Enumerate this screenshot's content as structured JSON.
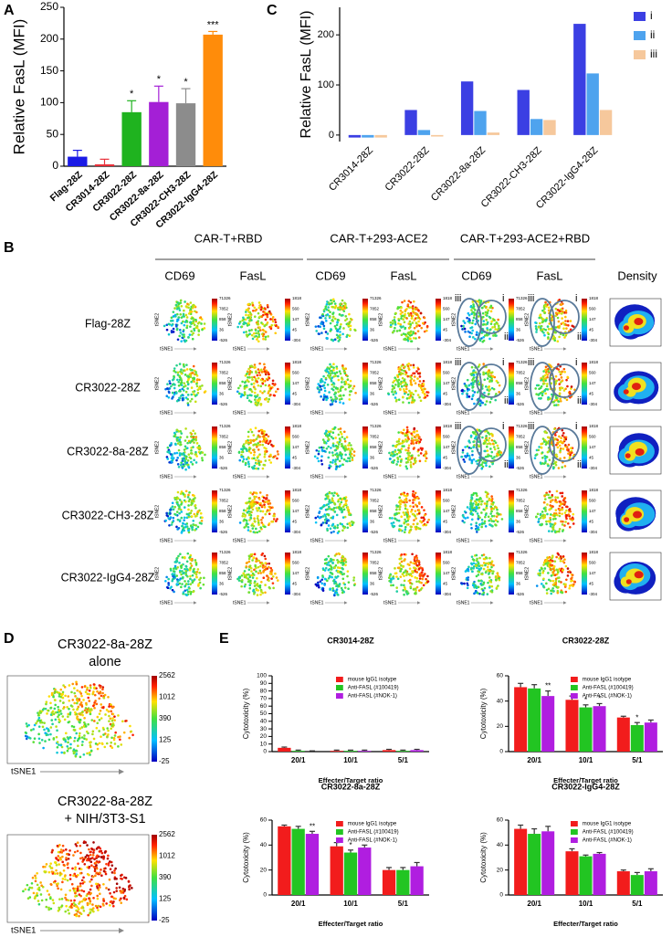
{
  "panel_labels": [
    "A",
    "B",
    "C",
    "D",
    "E"
  ],
  "chart_data": [
    {
      "type": "bar",
      "ylabel": "Relative FasL (MFI)",
      "categories": [
        "Flag-28Z",
        "CR3014-28Z",
        "CR3022-28Z",
        "CR3022-8a-28Z",
        "CR3022-CH3-28Z",
        "CR3022-IgG4-28Z"
      ],
      "values": [
        15,
        3,
        85,
        101,
        99,
        207
      ],
      "errors": [
        10,
        8,
        18,
        25,
        23,
        5
      ],
      "colors": [
        "#1a1ae6",
        "#e8303a",
        "#1fb31f",
        "#a41fd6",
        "#8c8c8c",
        "#ff8c0a"
      ],
      "significance": [
        null,
        null,
        "*",
        "*",
        "*",
        "***"
      ],
      "ylim": [
        0,
        250
      ],
      "yticks": [
        0,
        50,
        100,
        150,
        200,
        250
      ]
    },
    {
      "type": "grouped_bar",
      "ylabel": "Relative FasL (MFI)",
      "categories": [
        "CR3014-28Z",
        "CR3022-28Z",
        "CR3022-8a-28Z",
        "CR3022-CH3-28Z",
        "CR3022-IgG4-28Z"
      ],
      "series": [
        {
          "name": "i",
          "color": "#3b3fe3",
          "values": [
            -5,
            50,
            107,
            90,
            222
          ]
        },
        {
          "name": "ii",
          "color": "#4ea3ee",
          "values": [
            -5,
            10,
            48,
            32,
            123
          ]
        },
        {
          "name": "iii",
          "color": "#f6c89c",
          "values": [
            -5,
            -3,
            5,
            30,
            50
          ]
        }
      ],
      "ylim": [
        -13,
        255
      ],
      "yticks": [
        0,
        100,
        200
      ],
      "legend": "upper right"
    },
    {
      "type": "grouped_bar",
      "title": "CR3014-28Z",
      "ylabel": "Cytotoxicity (%)",
      "xlabel": "Effecter/Target ratio",
      "categories": [
        "20/1",
        "10/1",
        "5/1"
      ],
      "series": [
        {
          "name": "mouse IgG1 isotype",
          "color": "#f21c1c",
          "values": [
            5,
            1,
            2
          ],
          "errors": [
            1,
            1,
            1
          ],
          "significance": [
            null,
            null,
            null
          ]
        },
        {
          "name": "Anti-FASL (#100419)",
          "color": "#22c522",
          "values": [
            1,
            1,
            1
          ],
          "errors": [
            1,
            1,
            1
          ],
          "significance": [
            null,
            null,
            null
          ]
        },
        {
          "name": "Anti-FASL (#NOK-1)",
          "color": "#b01ee0",
          "values": [
            0,
            1,
            2
          ],
          "errors": [
            1,
            1,
            1
          ],
          "significance": [
            null,
            null,
            null
          ]
        }
      ],
      "ylim": [
        0,
        100
      ],
      "yticks": [
        0,
        10,
        20,
        30,
        40,
        50,
        60,
        70,
        80,
        90,
        100
      ],
      "legend": "upper right"
    },
    {
      "type": "grouped_bar",
      "title": "CR3022-28Z",
      "ylabel": "Cytotoxicity (%)",
      "xlabel": "Effecter/Target ratio",
      "categories": [
        "20/1",
        "10/1",
        "5/1"
      ],
      "series": [
        {
          "name": "mouse IgG1 isotype",
          "color": "#f21c1c",
          "values": [
            51,
            41,
            27
          ],
          "errors": [
            3,
            3,
            1
          ],
          "significance": [
            null,
            null,
            null
          ]
        },
        {
          "name": "Anti-FASL (#100419)",
          "color": "#22c522",
          "values": [
            50,
            35,
            21
          ],
          "errors": [
            3,
            2,
            2
          ],
          "significance": [
            null,
            "*",
            "*"
          ]
        },
        {
          "name": "Anti-FASL (#NOK-1)",
          "color": "#b01ee0",
          "values": [
            44,
            36,
            23
          ],
          "errors": [
            4,
            2,
            2
          ],
          "significance": [
            "**",
            "*",
            null
          ]
        }
      ],
      "ylim": [
        0,
        60
      ],
      "yticks": [
        0,
        20,
        40,
        60
      ],
      "legend": "upper right"
    },
    {
      "type": "grouped_bar",
      "title": "CR3022-8a-28Z",
      "ylabel": "Cytotoxicity (%)",
      "xlabel": "Effecter/Target ratio",
      "categories": [
        "20/1",
        "10/1",
        "5/1"
      ],
      "series": [
        {
          "name": "mouse IgG1 isotype",
          "color": "#f21c1c",
          "values": [
            55,
            39,
            20
          ],
          "errors": [
            1,
            3,
            2
          ],
          "significance": [
            null,
            null,
            null
          ]
        },
        {
          "name": "Anti-FASL (#100419)",
          "color": "#22c522",
          "values": [
            53,
            34,
            20
          ],
          "errors": [
            2,
            2,
            2
          ],
          "significance": [
            null,
            "*",
            null
          ]
        },
        {
          "name": "Anti-FASL (#NOK-1)",
          "color": "#b01ee0",
          "values": [
            49,
            38,
            23
          ],
          "errors": [
            2,
            2,
            3
          ],
          "significance": [
            "**",
            null,
            null
          ]
        }
      ],
      "ylim": [
        0,
        60
      ],
      "yticks": [
        0,
        20,
        40,
        60
      ],
      "legend": "upper right"
    },
    {
      "type": "grouped_bar",
      "title": "CR3022-IgG4-28Z",
      "ylabel": "Cytotoxicity (%)",
      "xlabel": "Effecter/Target ratio",
      "categories": [
        "20/1",
        "10/1",
        "5/1"
      ],
      "series": [
        {
          "name": "mouse IgG1 isotype",
          "color": "#f21c1c",
          "values": [
            53,
            35,
            19
          ],
          "errors": [
            3,
            2,
            1
          ],
          "significance": [
            null,
            null,
            null
          ]
        },
        {
          "name": "Anti-FASL (#100419)",
          "color": "#22c522",
          "values": [
            49,
            31,
            16
          ],
          "errors": [
            4,
            1,
            2
          ],
          "significance": [
            null,
            null,
            null
          ]
        },
        {
          "name": "Anti-FASL (#NOK-1)",
          "color": "#b01ee0",
          "values": [
            51,
            33,
            19
          ],
          "errors": [
            4,
            1,
            2
          ],
          "significance": [
            null,
            null,
            null
          ]
        }
      ],
      "ylim": [
        0,
        60
      ],
      "yticks": [
        0,
        20,
        40,
        60
      ],
      "legend": "upper right"
    }
  ],
  "tsne_panel": {
    "group_headings": [
      "CAR-T+RBD",
      "CAR-T+293-ACE2",
      "CAR-T+293-ACE2+RBD"
    ],
    "column_headers": [
      "CD69",
      "FasL",
      "CD69",
      "FasL",
      "CD69",
      "FasL",
      "Density"
    ],
    "row_labels": [
      "Flag-28Z",
      "CR3022-28Z",
      "CR3022-8a-28Z",
      "CR3022-CH3-28Z",
      "CR3022-IgG4-28Z"
    ],
    "cd69_scale": [
      71326,
      7852,
      858,
      36,
      -526
    ],
    "fasl_scale": [
      1818,
      560,
      147,
      45,
      -304
    ],
    "axis_x": "tSNE1",
    "axis_y": "tSNE2",
    "gates": [
      "i",
      "ii",
      "iii"
    ]
  },
  "d_panel": {
    "titles": [
      [
        "CR3022-8a-28Z",
        "alone"
      ],
      [
        "CR3022-8a-28Z",
        "+ NIH/3T3-S1"
      ]
    ],
    "scale": [
      2562,
      1012,
      390,
      125,
      -25
    ],
    "axis_x": "tSNE1"
  }
}
